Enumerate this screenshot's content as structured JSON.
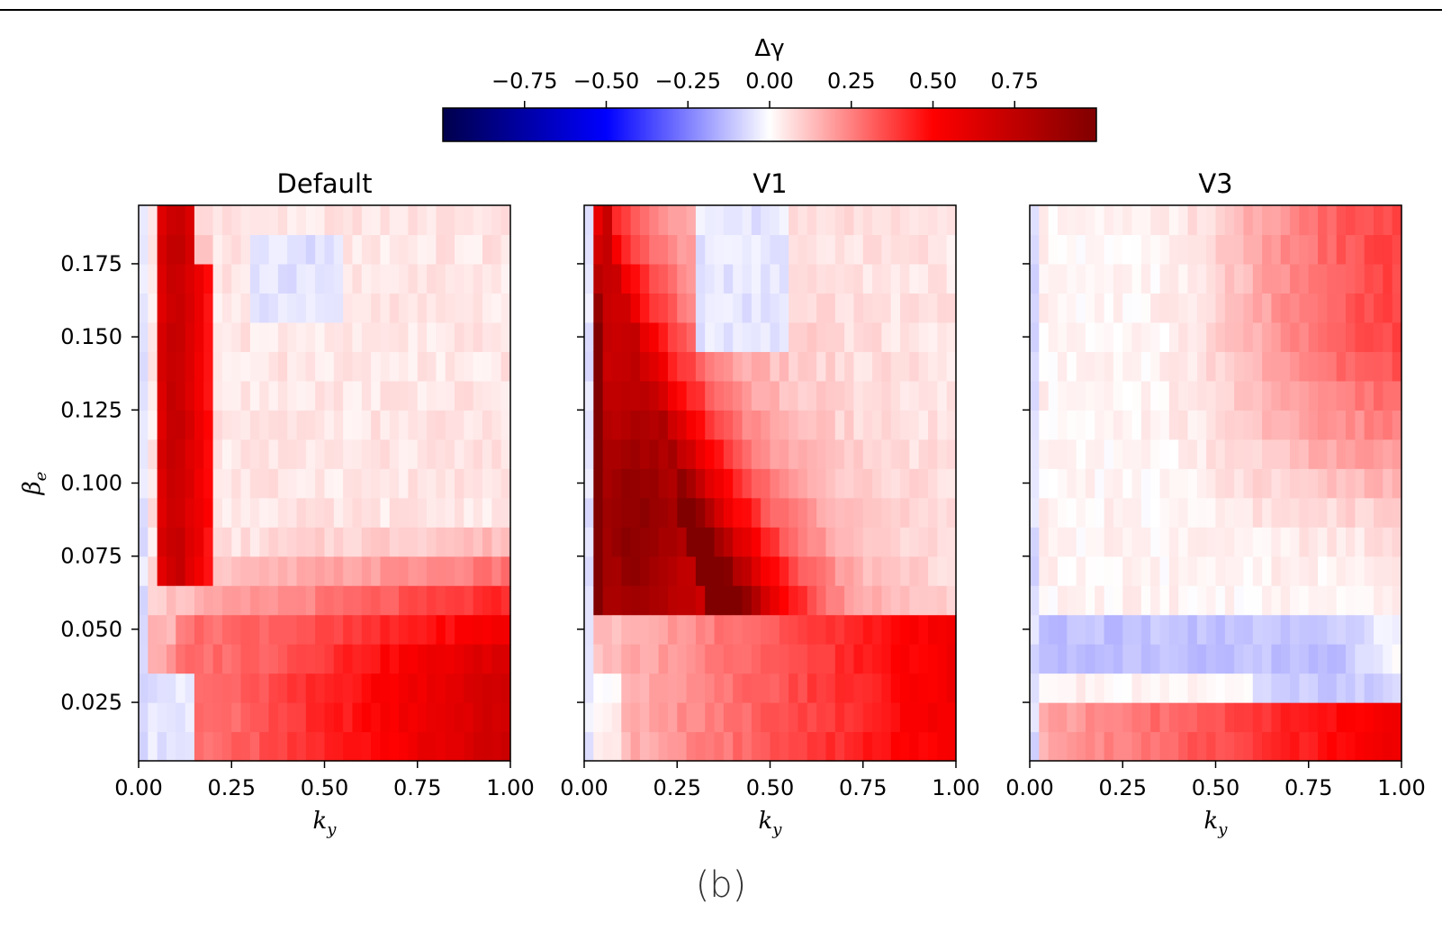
{
  "caption": "(b)",
  "colorbar": {
    "label": "Δγ",
    "vmin": -1.0,
    "vmax": 1.0,
    "cmap": "seismic",
    "ticks": [
      -0.75,
      -0.5,
      -0.25,
      0.0,
      0.25,
      0.5,
      0.75
    ],
    "tick_labels": [
      "−0.75",
      "−0.50",
      "−0.25",
      "0.00",
      "0.25",
      "0.50",
      "0.75"
    ]
  },
  "chart_data": [
    {
      "type": "heatmap",
      "title": "Default",
      "xlabel": "k_y",
      "ylabel": "β_e",
      "xlim": [
        0.0,
        1.0
      ],
      "ylim": [
        0.005,
        0.195
      ],
      "xticks": [
        "0.00",
        "0.25",
        "0.50",
        "0.75",
        "1.00"
      ],
      "yticks": [
        "0.025",
        "0.050",
        "0.075",
        "0.100",
        "0.125",
        "0.150",
        "0.175"
      ],
      "grid": {
        "nx": 40,
        "ny": 19,
        "x_range": [
          0.0,
          1.0
        ],
        "y_range": [
          0.005,
          0.195
        ]
      }
    },
    {
      "type": "heatmap",
      "title": "V1",
      "xlabel": "k_y",
      "ylabel": "",
      "xlim": [
        0.0,
        1.0
      ],
      "ylim": [
        0.005,
        0.195
      ],
      "xticks": [
        "0.00",
        "0.25",
        "0.50",
        "0.75",
        "1.00"
      ],
      "yticks": [],
      "grid": {
        "nx": 40,
        "ny": 19,
        "x_range": [
          0.0,
          1.0
        ],
        "y_range": [
          0.005,
          0.195
        ]
      }
    },
    {
      "type": "heatmap",
      "title": "V3",
      "xlabel": "k_y",
      "ylabel": "",
      "xlim": [
        0.0,
        1.0
      ],
      "ylim": [
        0.005,
        0.195
      ],
      "xticks": [
        "0.00",
        "0.25",
        "0.50",
        "0.75",
        "1.00"
      ],
      "yticks": [],
      "grid": {
        "nx": 40,
        "ny": 19,
        "x_range": [
          0.0,
          1.0
        ],
        "y_range": [
          0.005,
          0.195
        ]
      }
    }
  ]
}
